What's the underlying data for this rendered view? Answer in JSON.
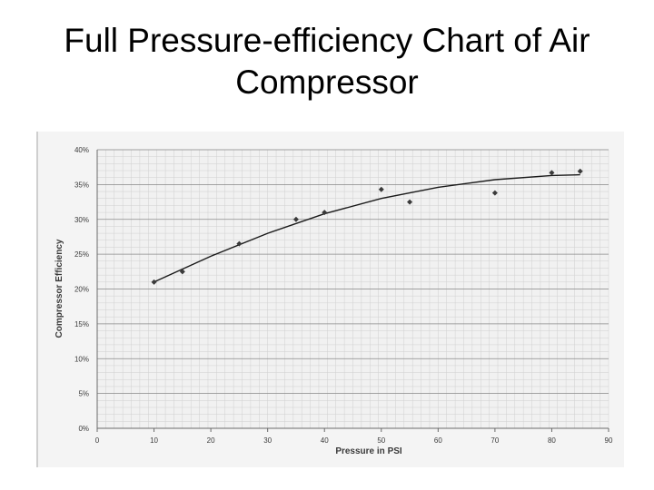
{
  "slide": {
    "title_line1": "Full Pressure-efficiency Chart of Air",
    "title_line2": "Compressor"
  },
  "chart_data": {
    "type": "scatter",
    "title": "",
    "xlabel": "Pressure in PSI",
    "ylabel": "Compressor Efficiency",
    "xlim": [
      0,
      90
    ],
    "ylim": [
      0,
      40
    ],
    "x_ticks": [
      "0",
      "10",
      "20",
      "30",
      "40",
      "50",
      "60",
      "70",
      "80",
      "90"
    ],
    "y_ticks": [
      "0%",
      "5%",
      "10%",
      "15%",
      "20%",
      "25%",
      "30%",
      "35%",
      "40%"
    ],
    "grid": true,
    "series": [
      {
        "points": [
          {
            "x": 10,
            "y": 21.0
          },
          {
            "x": 15,
            "y": 22.5
          },
          {
            "x": 25,
            "y": 26.5
          },
          {
            "x": 35,
            "y": 30.0
          },
          {
            "x": 40,
            "y": 31.0
          },
          {
            "x": 50,
            "y": 34.3
          },
          {
            "x": 55,
            "y": 32.5
          },
          {
            "x": 70,
            "y": 33.8
          },
          {
            "x": 80,
            "y": 36.7
          },
          {
            "x": 85,
            "y": 36.9
          }
        ]
      }
    ],
    "trendline": {
      "type": "polynomial",
      "points": [
        {
          "x": 10,
          "y": 21.0
        },
        {
          "x": 20,
          "y": 24.7
        },
        {
          "x": 30,
          "y": 28.0
        },
        {
          "x": 40,
          "y": 30.8
        },
        {
          "x": 50,
          "y": 33.0
        },
        {
          "x": 60,
          "y": 34.6
        },
        {
          "x": 70,
          "y": 35.7
        },
        {
          "x": 80,
          "y": 36.3
        },
        {
          "x": 85,
          "y": 36.4
        }
      ]
    },
    "colors": {
      "marker": "#3a3a3a",
      "trendline": "#1a1a1a",
      "major_grid": "#8a8a8a",
      "minor_grid": "#d0d0d0",
      "plot_bg": "#f1f1f1",
      "text": "#3a3a3a"
    }
  }
}
